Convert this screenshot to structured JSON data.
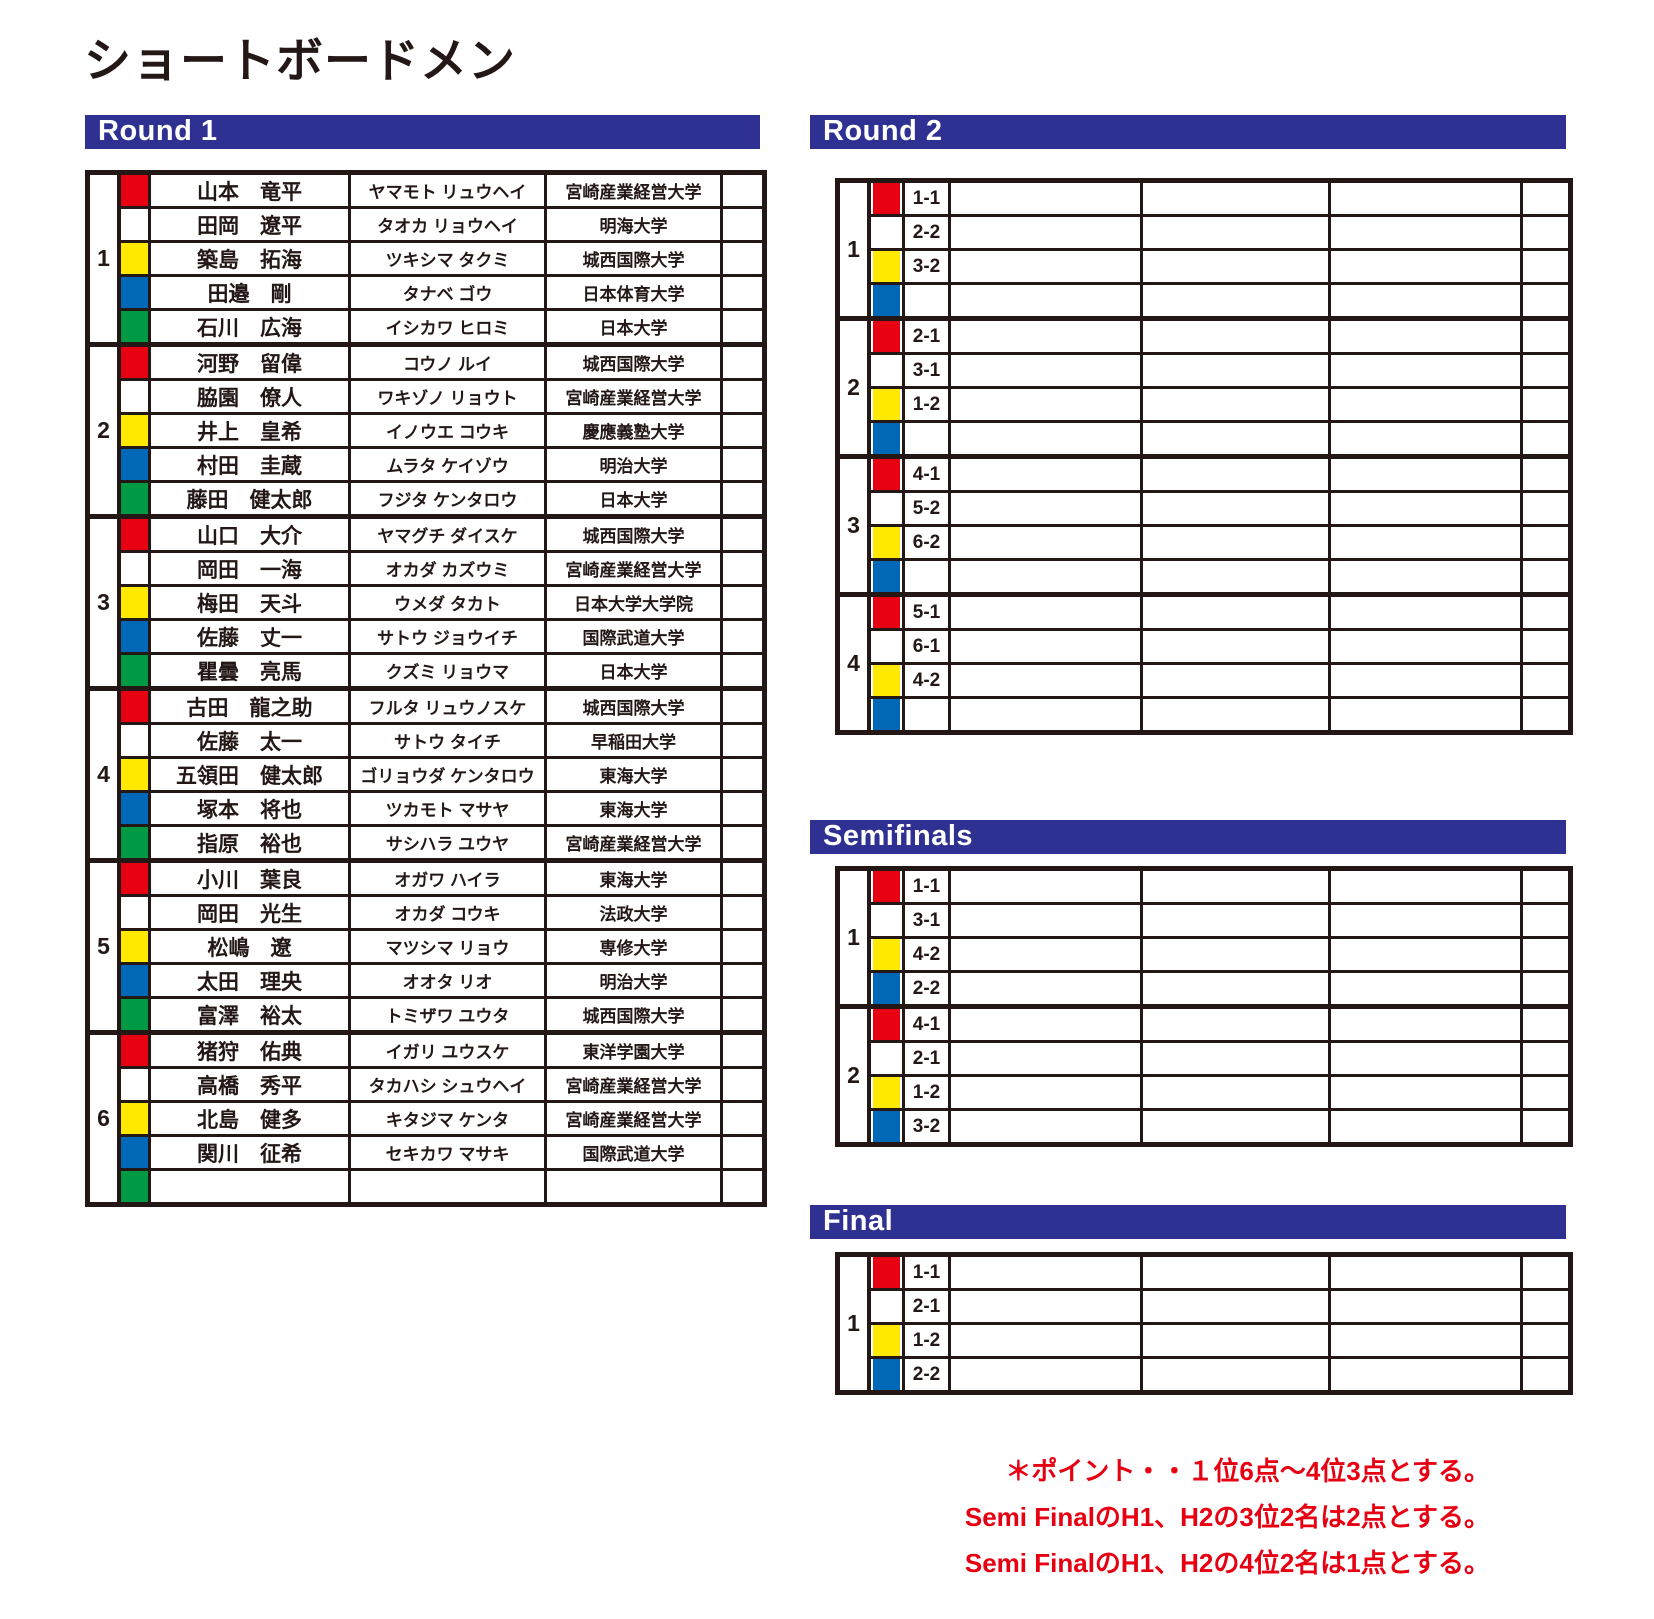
{
  "page_title": "ショートボードメン",
  "colors": {
    "header_bar": "#2e3192",
    "ink": "#231815",
    "jersey_red": "#e60012",
    "jersey_white": "#ffffff",
    "jersey_yellow": "#ffe900",
    "jersey_blue": "#0068b7",
    "jersey_green": "#009a44",
    "note_text": "#e60012"
  },
  "round1": {
    "title": "Round 1",
    "heats": [
      {
        "number": "1",
        "rows": [
          {
            "color": "red",
            "name": "山本　竜平",
            "kana": "ヤマモト リュウヘイ",
            "university": "宮崎産業経営大学"
          },
          {
            "color": "white",
            "name": "田岡　遼平",
            "kana": "タオカ リョウヘイ",
            "university": "明海大学"
          },
          {
            "color": "yellow",
            "name": "築島　拓海",
            "kana": "ツキシマ タクミ",
            "university": "城西国際大学"
          },
          {
            "color": "blue",
            "name": "田邉　剛",
            "kana": "タナベ ゴウ",
            "university": "日本体育大学"
          },
          {
            "color": "green",
            "name": "石川　広海",
            "kana": "イシカワ ヒロミ",
            "university": "日本大学"
          }
        ]
      },
      {
        "number": "2",
        "rows": [
          {
            "color": "red",
            "name": "河野　留偉",
            "kana": "コウノ ルイ",
            "university": "城西国際大学"
          },
          {
            "color": "white",
            "name": "脇園　僚人",
            "kana": "ワキゾノ リョウト",
            "university": "宮崎産業経営大学"
          },
          {
            "color": "yellow",
            "name": "井上　皇希",
            "kana": "イノウエ コウキ",
            "university": "慶應義塾大学"
          },
          {
            "color": "blue",
            "name": "村田　圭蔵",
            "kana": "ムラタ ケイゾウ",
            "university": "明治大学"
          },
          {
            "color": "green",
            "name": "藤田　健太郎",
            "kana": "フジタ ケンタロウ",
            "university": "日本大学"
          }
        ]
      },
      {
        "number": "3",
        "rows": [
          {
            "color": "red",
            "name": "山口　大介",
            "kana": "ヤマグチ ダイスケ",
            "university": "城西国際大学"
          },
          {
            "color": "white",
            "name": "岡田　一海",
            "kana": "オカダ カズウミ",
            "university": "宮崎産業経営大学"
          },
          {
            "color": "yellow",
            "name": "梅田　天斗",
            "kana": "ウメダ タカト",
            "university": "日本大学大学院"
          },
          {
            "color": "blue",
            "name": "佐藤　丈一",
            "kana": "サトウ ジョウイチ",
            "university": "国際武道大学"
          },
          {
            "color": "green",
            "name": "瞿曇　亮馬",
            "kana": "クズミ リョウマ",
            "university": "日本大学"
          }
        ]
      },
      {
        "number": "4",
        "rows": [
          {
            "color": "red",
            "name": "古田　龍之助",
            "kana": "フルタ リュウノスケ",
            "university": "城西国際大学"
          },
          {
            "color": "white",
            "name": "佐藤　太一",
            "kana": "サトウ タイチ",
            "university": "早稲田大学"
          },
          {
            "color": "yellow",
            "name": "五領田　健太郎",
            "kana": "ゴリョウダ ケンタロウ",
            "university": "東海大学"
          },
          {
            "color": "blue",
            "name": "塚本　将也",
            "kana": "ツカモト マサヤ",
            "university": "東海大学"
          },
          {
            "color": "green",
            "name": "指原　裕也",
            "kana": "サシハラ ユウヤ",
            "university": "宮崎産業経営大学"
          }
        ]
      },
      {
        "number": "5",
        "rows": [
          {
            "color": "red",
            "name": "小川　葉良",
            "kana": "オガワ ハイラ",
            "university": "東海大学"
          },
          {
            "color": "white",
            "name": "岡田　光生",
            "kana": "オカダ コウキ",
            "university": "法政大学"
          },
          {
            "color": "yellow",
            "name": "松嶋　遼",
            "kana": "マツシマ リョウ",
            "university": "専修大学"
          },
          {
            "color": "blue",
            "name": "太田　理央",
            "kana": "オオタ リオ",
            "university": "明治大学"
          },
          {
            "color": "green",
            "name": "富澤　裕太",
            "kana": "トミザワ ユウタ",
            "university": "城西国際大学"
          }
        ]
      },
      {
        "number": "6",
        "rows": [
          {
            "color": "red",
            "name": "猪狩　佑典",
            "kana": "イガリ ユウスケ",
            "university": "東洋学園大学"
          },
          {
            "color": "white",
            "name": "高橋　秀平",
            "kana": "タカハシ シュウヘイ",
            "university": "宮崎産業経営大学"
          },
          {
            "color": "yellow",
            "name": "北島　健多",
            "kana": "キタジマ ケンタ",
            "university": "宮崎産業経営大学"
          },
          {
            "color": "blue",
            "name": "関川　征希",
            "kana": "セキカワ マサキ",
            "university": "国際武道大学"
          },
          {
            "color": "green",
            "name": "",
            "kana": "",
            "university": ""
          }
        ]
      }
    ]
  },
  "round2": {
    "title": "Round 2",
    "heats": [
      {
        "number": "1",
        "rows": [
          {
            "color": "red",
            "seed": "1-1"
          },
          {
            "color": "white",
            "seed": "2-2"
          },
          {
            "color": "yellow",
            "seed": "3-2"
          },
          {
            "color": "blue",
            "seed": ""
          }
        ]
      },
      {
        "number": "2",
        "rows": [
          {
            "color": "red",
            "seed": "2-1"
          },
          {
            "color": "white",
            "seed": "3-1"
          },
          {
            "color": "yellow",
            "seed": "1-2"
          },
          {
            "color": "blue",
            "seed": ""
          }
        ]
      },
      {
        "number": "3",
        "rows": [
          {
            "color": "red",
            "seed": "4-1"
          },
          {
            "color": "white",
            "seed": "5-2"
          },
          {
            "color": "yellow",
            "seed": "6-2"
          },
          {
            "color": "blue",
            "seed": ""
          }
        ]
      },
      {
        "number": "4",
        "rows": [
          {
            "color": "red",
            "seed": "5-1"
          },
          {
            "color": "white",
            "seed": "6-1"
          },
          {
            "color": "yellow",
            "seed": "4-2"
          },
          {
            "color": "blue",
            "seed": ""
          }
        ]
      }
    ]
  },
  "semifinals": {
    "title": "Semifinals",
    "heats": [
      {
        "number": "1",
        "rows": [
          {
            "color": "red",
            "seed": "1-1"
          },
          {
            "color": "white",
            "seed": "3-1"
          },
          {
            "color": "yellow",
            "seed": "4-2"
          },
          {
            "color": "blue",
            "seed": "2-2"
          }
        ]
      },
      {
        "number": "2",
        "rows": [
          {
            "color": "red",
            "seed": "4-1"
          },
          {
            "color": "white",
            "seed": "2-1"
          },
          {
            "color": "yellow",
            "seed": "1-2"
          },
          {
            "color": "blue",
            "seed": "3-2"
          }
        ]
      }
    ]
  },
  "final": {
    "title": "Final",
    "heats": [
      {
        "number": "1",
        "rows": [
          {
            "color": "red",
            "seed": "1-1"
          },
          {
            "color": "white",
            "seed": "2-1"
          },
          {
            "color": "yellow",
            "seed": "1-2"
          },
          {
            "color": "blue",
            "seed": "2-2"
          }
        ]
      }
    ]
  },
  "notes": [
    "＊ポイント・・１位6点～4位3点とする。",
    "Semi FinalのH1、H2の3位2名は2点とする。",
    "Semi FinalのH1、H2の4位2名は1点とする。"
  ]
}
